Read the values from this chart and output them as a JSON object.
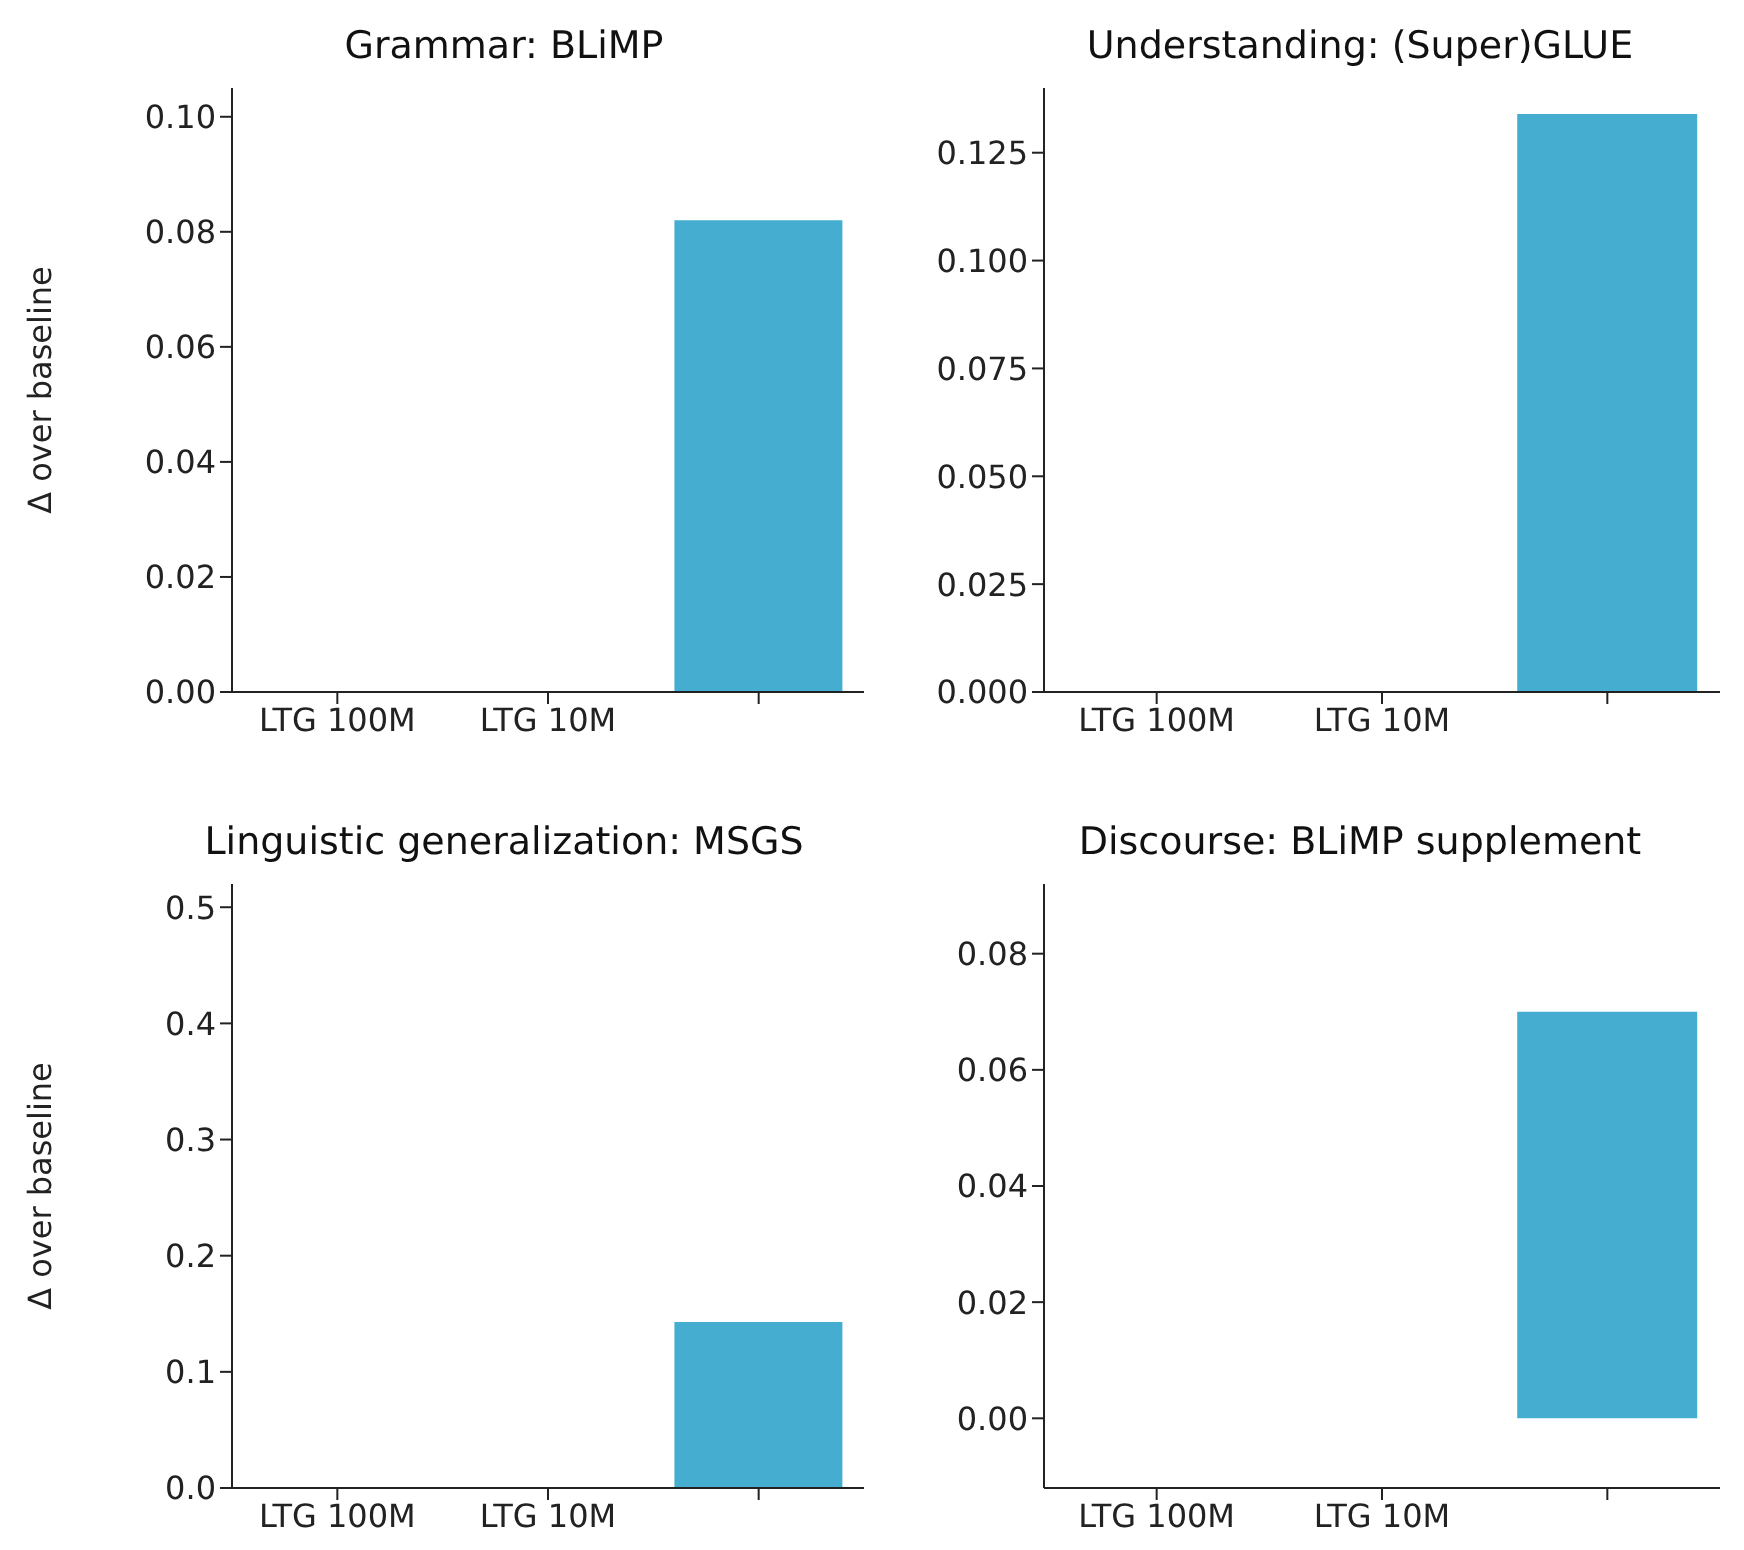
{
  "chart_data": [
    {
      "type": "bar",
      "title": "Grammar: BLiMP",
      "ylabel": "Δ over baseline",
      "categories": [
        "LTG 100M",
        "LTG 10M",
        null
      ],
      "values": [
        0,
        0,
        0.082
      ],
      "colors": [
        "#e8a33c",
        "#5aa05a",
        "#45aed0"
      ],
      "ylim": [
        0,
        0.105
      ],
      "yticks": [
        {
          "value": 0,
          "label": "0.00"
        },
        {
          "value": 0.02,
          "label": "0.02"
        },
        {
          "value": 0.04,
          "label": "0.04"
        },
        {
          "value": 0.06,
          "label": "0.06"
        },
        {
          "value": 0.08,
          "label": "0.08"
        },
        {
          "value": 0.1,
          "label": "0.10"
        }
      ],
      "grid": false,
      "legend": false
    },
    {
      "type": "bar",
      "title": "Understanding: (Super)GLUE",
      "categories": [
        "LTG 100M",
        "LTG 10M",
        null
      ],
      "values": [
        0,
        0,
        0.134
      ],
      "colors": [
        "#e8a33c",
        "#5aa05a",
        "#45aed0"
      ],
      "ylim": [
        0,
        0.14
      ],
      "yticks": [
        {
          "value": 0,
          "label": "0.000"
        },
        {
          "value": 0.025,
          "label": "0.025"
        },
        {
          "value": 0.05,
          "label": "0.050"
        },
        {
          "value": 0.075,
          "label": "0.075"
        },
        {
          "value": 0.1,
          "label": "0.100"
        },
        {
          "value": 0.125,
          "label": "0.125"
        }
      ],
      "grid": false,
      "legend": false
    },
    {
      "type": "bar",
      "title": "Linguistic generalization: MSGS",
      "ylabel": "Δ over baseline",
      "categories": [
        "LTG 100M",
        "LTG 10M",
        null
      ],
      "values": [
        0,
        0,
        0.143
      ],
      "colors": [
        "#e8a33c",
        "#5aa05a",
        "#45aed0"
      ],
      "ylim": [
        0,
        0.52
      ],
      "yticks": [
        {
          "value": 0,
          "label": "0.0"
        },
        0.1,
        0.2,
        0.3,
        0.4,
        0.5
      ],
      "grid": false,
      "legend": false
    },
    {
      "type": "bar",
      "title": "Discourse: BLiMP supplement",
      "categories": [
        "LTG 100M",
        "LTG 10M",
        null
      ],
      "values": [
        0,
        0,
        0.07
      ],
      "colors": [
        "#e8a33c",
        "#5aa05a",
        "#45aed0"
      ],
      "ylim": [
        -0.012,
        0.092
      ],
      "yticks": [
        {
          "value": 0,
          "label": "0.00"
        },
        {
          "value": 0.02,
          "label": "0.02"
        },
        {
          "value": 0.04,
          "label": "0.04"
        },
        {
          "value": 0.06,
          "label": "0.06"
        },
        {
          "value": 0.08,
          "label": "0.08"
        }
      ],
      "grid": false,
      "legend": false
    }
  ]
}
